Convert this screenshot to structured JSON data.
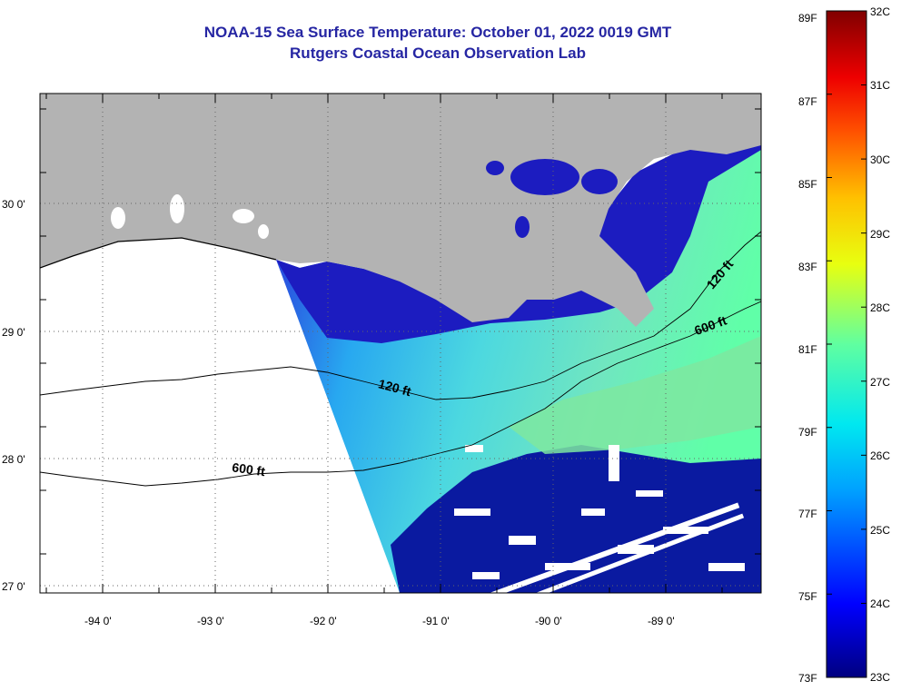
{
  "header": {
    "title": "NOAA-15 Sea Surface Temperature:  October 01, 2022 0019 GMT",
    "subtitle": "Rutgers Coastal Ocean Observation Lab"
  },
  "map": {
    "lon_labels": [
      "-94 0'",
      "-93 0'",
      "-92 0'",
      "-91 0'",
      "-90 0'",
      "-89 0'"
    ],
    "lat_labels": [
      "30 0'",
      "29 0'",
      "28 0'",
      "27 0'"
    ],
    "lon_range": [
      -94.5,
      -88.2
    ],
    "lat_range": [
      26.95,
      29.9
    ],
    "contour_labels": [
      {
        "text": "120 ft",
        "contour": "shelf-120ft"
      },
      {
        "text": "600 ft",
        "contour": "shelf-600ft"
      },
      {
        "text": "120 ft",
        "contour": "shelf-120ft"
      },
      {
        "text": "600 ft",
        "contour": "shelf-600ft"
      }
    ],
    "colors": {
      "land": "#b3b3b3",
      "no_data": "#ffffff"
    }
  },
  "colorbar": {
    "fahrenheit_labels": [
      "89F",
      "87F",
      "85F",
      "83F",
      "81F",
      "79F",
      "77F",
      "75F",
      "73F"
    ],
    "celsius_labels": [
      "32C",
      "31C",
      "30C",
      "29C",
      "28C",
      "27C",
      "26C",
      "25C",
      "24C",
      "23C"
    ],
    "range_c": [
      23,
      32
    ],
    "range_f": [
      73,
      89
    ],
    "palette": [
      "#000080",
      "#0000ff",
      "#00a0ff",
      "#00e8f0",
      "#60ffa0",
      "#e8ff10",
      "#ffc000",
      "#ff5000",
      "#ee0000",
      "#800000"
    ]
  }
}
